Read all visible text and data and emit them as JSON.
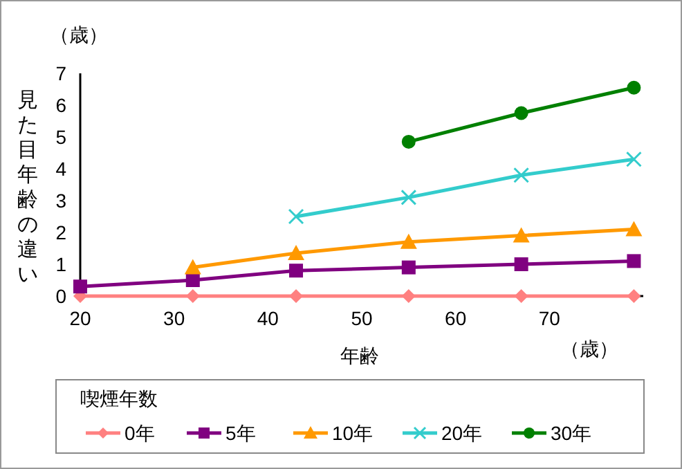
{
  "chart_data": {
    "type": "line",
    "xlabel": "年齢",
    "ylabel": "見た目年齢の違い",
    "legend_title": "喫煙年数",
    "annotations": [
      "（歳）",
      "（歳）"
    ],
    "xlim": [
      20,
      80
    ],
    "xticks": [
      20,
      30,
      40,
      50,
      60,
      70
    ],
    "ylim": [
      0,
      7
    ],
    "yticks": [
      0,
      1,
      2,
      3,
      4,
      5,
      6,
      7
    ],
    "x": [
      20,
      32,
      43,
      55,
      67,
      79
    ],
    "legend": "bottom",
    "grid": false,
    "line_style": "solid",
    "series": [
      {
        "name": "0年",
        "color": "#ff8080",
        "marker": "diamond",
        "values": [
          0,
          0,
          0,
          0,
          0,
          0
        ]
      },
      {
        "name": "5年",
        "color": "#800080",
        "marker": "square",
        "values": [
          0.3,
          0.5,
          0.8,
          0.9,
          1.0,
          1.1
        ]
      },
      {
        "name": "10年",
        "color": "#ff9900",
        "marker": "triangle",
        "values": [
          null,
          0.9,
          1.35,
          1.7,
          1.9,
          2.1
        ]
      },
      {
        "name": "20年",
        "color": "#33cccc",
        "marker": "cross",
        "values": [
          null,
          null,
          2.5,
          3.1,
          3.8,
          4.3
        ]
      },
      {
        "name": "30年",
        "color": "#008000",
        "marker": "circle",
        "values": [
          null,
          null,
          null,
          4.85,
          5.75,
          6.55
        ]
      }
    ]
  }
}
